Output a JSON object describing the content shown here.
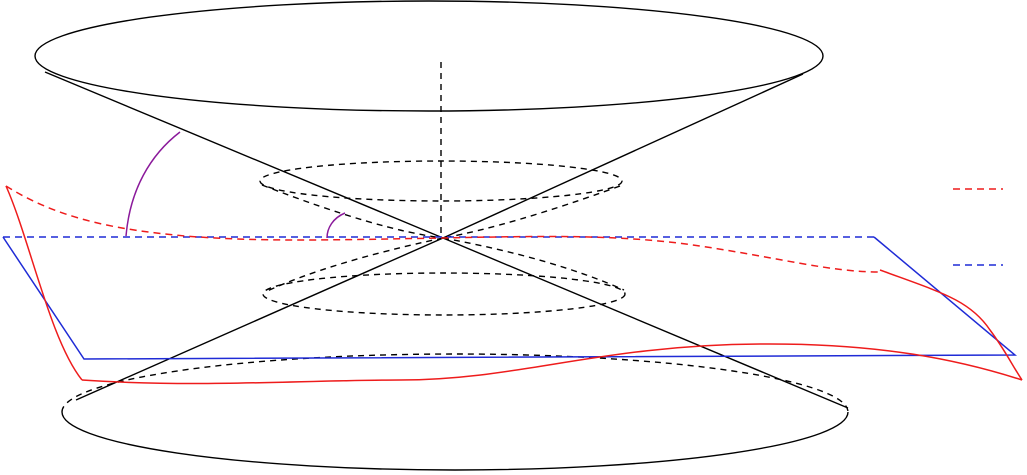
{
  "figure": {
    "legend": {
      "entries": [
        {
          "style": "dashed",
          "color": "#ee1c1c"
        },
        {
          "style": "dashed",
          "color": "#1f2bd6"
        }
      ]
    },
    "colors": {
      "cone": "#000000",
      "curved_surface": "#ee1c1c",
      "plane": "#1f2bd6",
      "angle_arc": "#8b1a9b"
    }
  }
}
